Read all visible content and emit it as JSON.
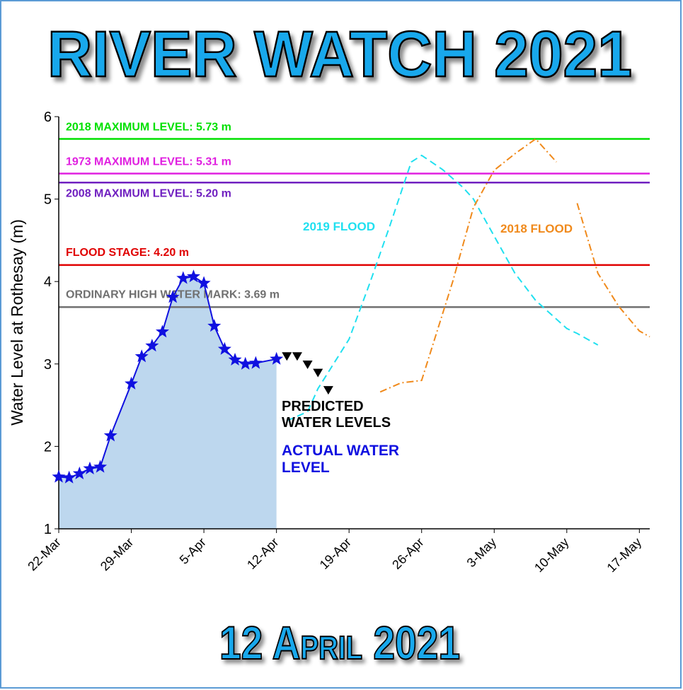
{
  "chart_data": {
    "type": "line",
    "title": "RIVER WATCH 2021",
    "footer": "12 April 2021",
    "ylabel": "Water Level at Rothesay (m)",
    "xlim": [
      "22-Mar",
      "18-May"
    ],
    "xticks": [
      "22-Mar",
      "29-Mar",
      "5-Apr",
      "12-Apr",
      "19-Apr",
      "26-Apr",
      "3-May",
      "10-May",
      "17-May"
    ],
    "ylim": [
      1,
      6
    ],
    "yticks": [
      1,
      2,
      3,
      4,
      5,
      6
    ],
    "reference_lines": [
      {
        "label": "2018 MAXIMUM LEVEL:  5.73 m",
        "value": 5.73,
        "color": "#00e000"
      },
      {
        "label": "1973 MAXIMUM LEVEL:  5.31 m",
        "value": 5.31,
        "color": "#e020e0"
      },
      {
        "label": "2008 MAXIMUM LEVEL:  5.20 m",
        "value": 5.2,
        "color": "#7020c0"
      },
      {
        "label": "FLOOD STAGE:  4.20 m",
        "value": 4.2,
        "color": "#e00000"
      },
      {
        "label": "ORDINARY HIGH WATER MARK:  3.69 m",
        "value": 3.69,
        "color": "#707070"
      }
    ],
    "series": [
      {
        "name": "ACTUAL WATER LEVEL",
        "color": "#1010e0",
        "marker": "star",
        "area": "#bdd7ee",
        "x": [
          "22-Mar",
          "23-Mar",
          "24-Mar",
          "25-Mar",
          "26-Mar",
          "27-Mar",
          "29-Mar",
          "30-Mar",
          "31-Mar",
          "1-Apr",
          "2-Apr",
          "3-Apr",
          "4-Apr",
          "5-Apr",
          "6-Apr",
          "7-Apr",
          "8-Apr",
          "9-Apr",
          "10-Apr",
          "12-Apr"
        ],
        "values": [
          1.63,
          1.62,
          1.67,
          1.73,
          1.75,
          2.13,
          2.76,
          3.09,
          3.22,
          3.39,
          3.81,
          4.04,
          4.06,
          3.98,
          3.46,
          3.18,
          3.05,
          3.0,
          3.01,
          3.06
        ]
      },
      {
        "name": "PREDICTED WATER LEVELS",
        "color": "#000000",
        "marker": "triangle",
        "x": [
          "13-Apr",
          "14-Apr",
          "15-Apr",
          "16-Apr",
          "17-Apr"
        ],
        "values": [
          3.09,
          3.09,
          2.99,
          2.89,
          2.68
        ]
      },
      {
        "name": "2019 FLOOD",
        "color": "#20e0f0",
        "dash": "10 6",
        "x": [
          "13-Apr",
          "15-Apr",
          "16-Apr",
          "17-Apr",
          "19-Apr",
          "21-Apr",
          "23-Apr",
          "25-Apr",
          "26-Apr",
          "28-Apr",
          "30-Apr",
          "1-May",
          "3-May",
          "5-May",
          "7-May",
          "10-May",
          "11-May",
          "13-May"
        ],
        "values": [
          2.31,
          2.42,
          2.7,
          2.9,
          3.3,
          3.98,
          4.7,
          5.45,
          5.53,
          5.36,
          5.14,
          5.0,
          4.55,
          4.1,
          3.77,
          3.43,
          3.37,
          3.23
        ]
      },
      {
        "name": "2018 FLOOD",
        "color": "#f08a1c",
        "dash": "10 4 2 4",
        "x": [
          "22-Apr",
          "24-Apr",
          "26-Apr",
          "29-Apr",
          "1-May",
          "3-May",
          "5-May",
          "7-May",
          "9-May",
          "10-May",
          "11-May",
          "13-May",
          "15-May",
          "17-May",
          "18-May"
        ],
        "values": [
          2.66,
          2.77,
          2.8,
          4.0,
          4.9,
          5.35,
          5.55,
          5.73,
          5.45,
          null,
          4.95,
          4.1,
          3.7,
          3.4,
          3.33
        ]
      }
    ]
  }
}
